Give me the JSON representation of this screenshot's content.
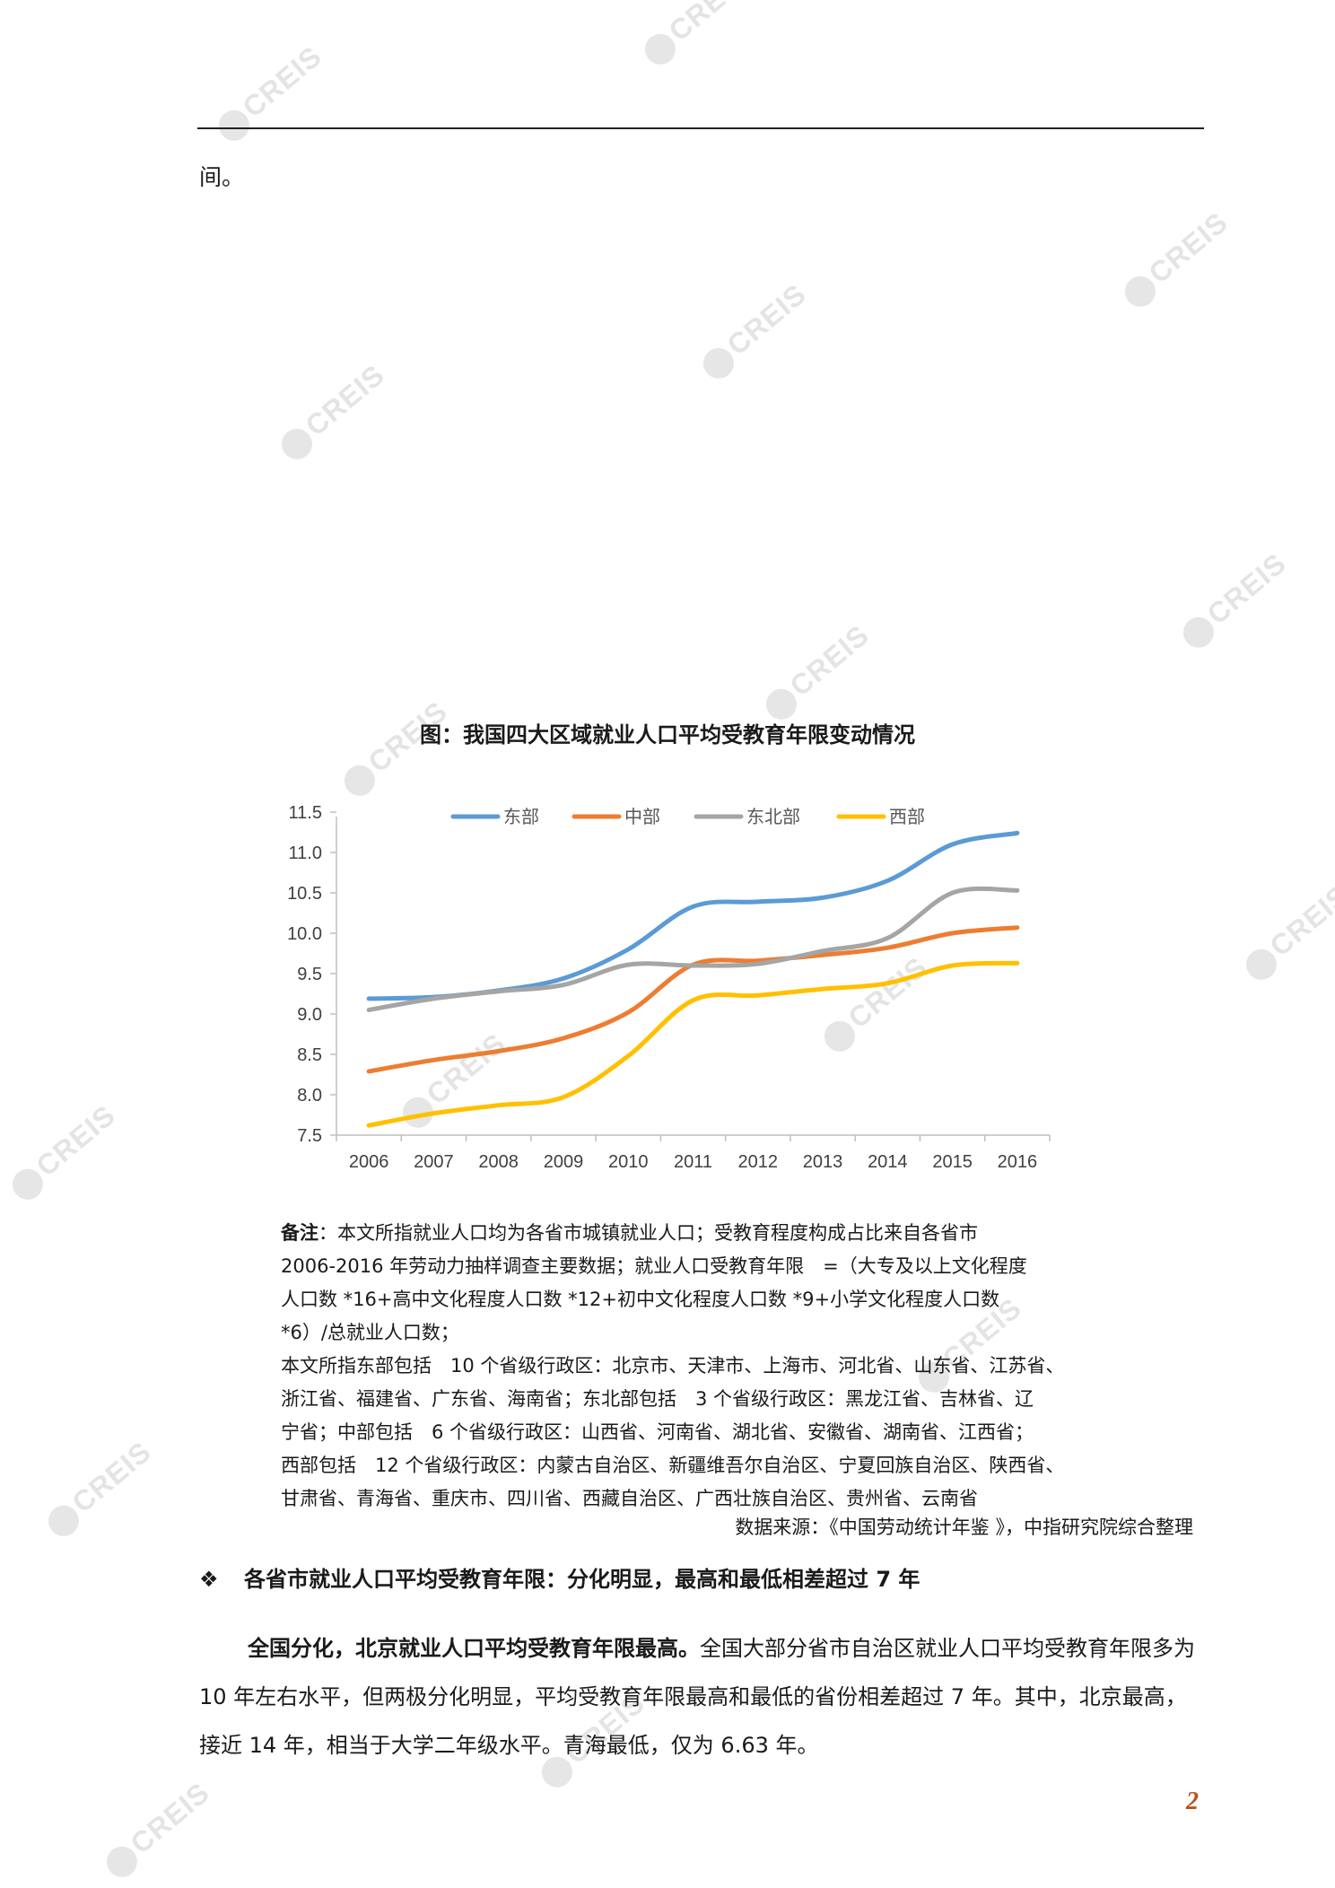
{
  "page": {
    "carry_text": "间。",
    "watermark": "CREIS",
    "page_number": "2"
  },
  "figure": {
    "title": "图：我国四大区域就业人口平均受教育年限变动情况"
  },
  "chart_data": {
    "type": "line",
    "title": "图：我国四大区域就业人口平均受教育年限变动情况",
    "xlabel": "",
    "ylabel": "",
    "categories": [
      "2006",
      "2007",
      "2008",
      "2009",
      "2010",
      "2011",
      "2012",
      "2013",
      "2014",
      "2015",
      "2016"
    ],
    "ylim": [
      7.5,
      11.5
    ],
    "yticks": [
      "7.5",
      "8.0",
      "8.5",
      "9.0",
      "9.5",
      "10.0",
      "10.5",
      "11.0",
      "11.5"
    ],
    "grid": false,
    "legend": "top",
    "series": [
      {
        "name": "东部",
        "color": "#5b9bd5",
        "values": [
          9.19,
          9.21,
          9.29,
          9.44,
          9.8,
          10.33,
          10.39,
          10.44,
          10.65,
          11.1,
          11.24
        ]
      },
      {
        "name": "中部",
        "color": "#ed7d31",
        "values": [
          8.29,
          8.43,
          8.54,
          8.7,
          9.02,
          9.61,
          9.66,
          9.73,
          9.82,
          10.0,
          10.07
        ]
      },
      {
        "name": "东北部",
        "color": "#a5a5a5",
        "values": [
          9.05,
          9.19,
          9.28,
          9.36,
          9.61,
          9.6,
          9.62,
          9.78,
          9.94,
          10.5,
          10.53
        ]
      },
      {
        "name": "西部",
        "color": "#ffc000",
        "values": [
          7.62,
          7.77,
          7.87,
          7.97,
          8.48,
          9.17,
          9.23,
          9.31,
          9.38,
          9.6,
          9.63
        ]
      }
    ]
  },
  "notes": {
    "label": "备注",
    "lines": [
      "：本文所指就业人口均为各省市城镇就业人口；受教育程度构成占比来自各省市",
      "2006-2016 年劳动力抽样调查主要数据；就业人口受教育年限　=（大专及以上文化程度",
      "人口数 *16+高中文化程度人口数 *12+初中文化程度人口数 *9+小学文化程度人口数",
      "*6）/总就业人口数；",
      "本文所指东部包括　10 个省级行政区：北京市、天津市、上海市、河北省、山东省、江苏省、",
      "浙江省、福建省、广东省、海南省；东北部包括　3 个省级行政区：黑龙江省、吉林省、辽",
      "宁省；中部包括　6 个省级行政区：山西省、河南省、湖北省、安徽省、湖南省、江西省；",
      "西部包括　12 个省级行政区：内蒙古自治区、新疆维吾尔自治区、宁夏回族自治区、陕西省、",
      "甘肃省、青海省、重庆市、四川省、西藏自治区、广西壮族自治区、贵州省、云南省"
    ],
    "source": "数据来源：《中国劳动统计年鉴 》，中指研究院综合整理"
  },
  "section": {
    "bullet": "❖",
    "heading": "各省市就业人口平均受教育年限：分化明显，最高和最低相差超过 7 年",
    "lead": "全国分化，北京就业人口平均受教育年限最高。",
    "body": "全国大部分省市自治区就业人口平均受教育年限多为 10 年左右水平，但两极分化明显，平均受教育年限最高和最低的省份相差超过 7 年。其中，北京最高，接近 14 年，相当于大学二年级水平。青海最低，仅为 6.63 年。"
  }
}
